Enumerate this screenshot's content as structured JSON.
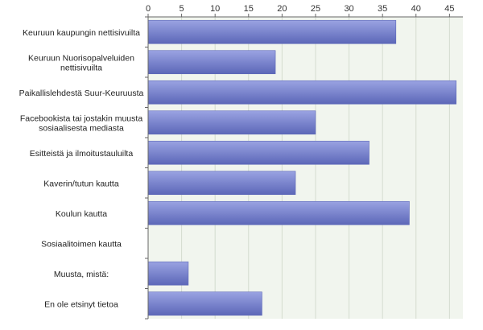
{
  "chart_data": {
    "type": "bar",
    "orientation": "horizontal",
    "title": "",
    "xlabel": "",
    "ylabel": "",
    "xlim": [
      0,
      47
    ],
    "x_ticks": [
      0,
      5,
      10,
      15,
      20,
      25,
      30,
      35,
      40,
      45
    ],
    "axis_position": "top",
    "grid": true,
    "categories": [
      "Keuruun kaupungin nettisivuilta",
      "Keuruun Nuorisopalveluiden nettisivuilta",
      "Paikallislehdestä Suur-Keuruusta",
      "Facebookista tai jostakin muusta sosiaalisesta mediasta",
      "Esitteistä ja ilmoitustauluilta",
      "Kaverin/tutun kautta",
      "Koulun kautta",
      "Sosiaalitoimen kautta",
      "Muusta, mistä:",
      "En ole etsinyt tietoa"
    ],
    "category_lines": [
      [
        "Keuruun kaupungin nettisivuilta"
      ],
      [
        "Keuruun Nuorisopalveluiden",
        "nettisivuilta"
      ],
      [
        "Paikallislehdestä Suur-Keuruusta"
      ],
      [
        "Facebookista tai jostakin muusta",
        "sosiaalisesta mediasta"
      ],
      [
        "Esitteistä ja ilmoitustauluilta"
      ],
      [
        "Kaverin/tutun kautta"
      ],
      [
        "Koulun kautta"
      ],
      [
        "Sosiaalitoimen kautta"
      ],
      [
        "Muusta, mistä:"
      ],
      [
        "En ole etsinyt tietoa"
      ]
    ],
    "series": [
      {
        "values": [
          37,
          19,
          46,
          25,
          33,
          22,
          39,
          0,
          6,
          17
        ]
      }
    ],
    "colors": {
      "bar": "#7b86d4",
      "bar_light": "#9aa3e2",
      "bar_dark": "#5c67b8",
      "plot_background": "#f1f5ee",
      "gridline": "#d4dccf",
      "axis": "#666666"
    }
  }
}
